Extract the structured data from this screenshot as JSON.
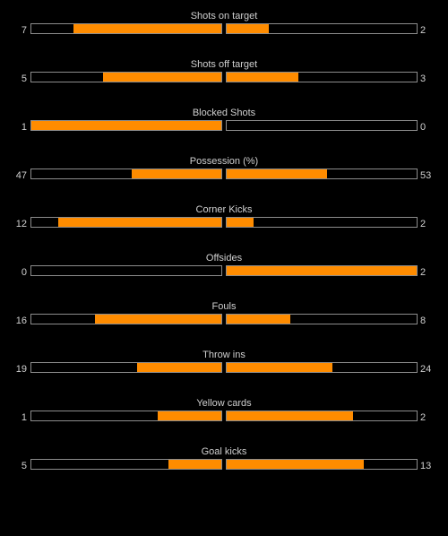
{
  "colors": {
    "background": "#000000",
    "bar_fill": "#ff8c00",
    "bar_border": "#8c8c8c",
    "text": "#d0d0d0"
  },
  "stats": [
    {
      "label": "Shots on target",
      "home": "7",
      "away": "2",
      "home_fraction": 0.78,
      "away_fraction": 0.22
    },
    {
      "label": "Shots off target",
      "home": "5",
      "away": "3",
      "home_fraction": 0.625,
      "away_fraction": 0.375
    },
    {
      "label": "Blocked Shots",
      "home": "1",
      "away": "0",
      "home_fraction": 1.0,
      "away_fraction": 0.0
    },
    {
      "label": "Possession (%)",
      "home": "47",
      "away": "53",
      "home_fraction": 0.47,
      "away_fraction": 0.53
    },
    {
      "label": "Corner Kicks",
      "home": "12",
      "away": "2",
      "home_fraction": 0.857,
      "away_fraction": 0.143
    },
    {
      "label": "Offsides",
      "home": "0",
      "away": "2",
      "home_fraction": 0.0,
      "away_fraction": 1.0
    },
    {
      "label": "Fouls",
      "home": "16",
      "away": "8",
      "home_fraction": 0.667,
      "away_fraction": 0.333
    },
    {
      "label": "Throw ins",
      "home": "19",
      "away": "24",
      "home_fraction": 0.442,
      "away_fraction": 0.558
    },
    {
      "label": "Yellow cards",
      "home": "1",
      "away": "2",
      "home_fraction": 0.333,
      "away_fraction": 0.667
    },
    {
      "label": "Goal kicks",
      "home": "5",
      "away": "13",
      "home_fraction": 0.278,
      "away_fraction": 0.722
    }
  ]
}
